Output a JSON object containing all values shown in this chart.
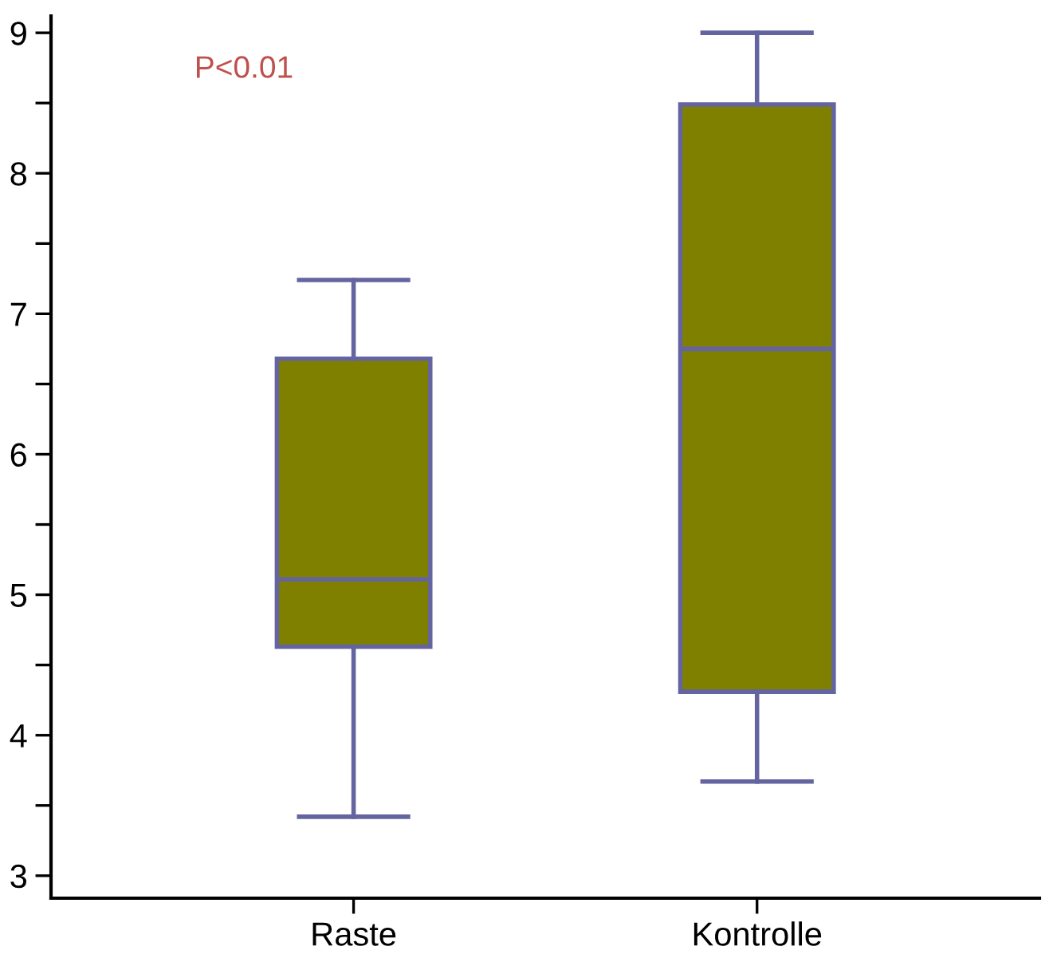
{
  "chart_data": {
    "type": "box",
    "categories": [
      "Raste",
      "Kontrolle"
    ],
    "series": [
      {
        "color": "#808000",
        "boxes": [
          {
            "low": 3.42,
            "q1": 4.63,
            "median": 5.11,
            "q3": 6.68,
            "high": 7.24
          },
          {
            "low": 3.67,
            "q1": 4.31,
            "median": 6.75,
            "q3": 8.49,
            "high": 9.0
          }
        ]
      }
    ],
    "ylim": [
      2.84,
      9.12
    ],
    "yticks": [
      3,
      {
        "value": 3.5,
        "label": null
      },
      4,
      {
        "value": 4.5,
        "label": null
      },
      5,
      {
        "value": 5.5,
        "label": null
      },
      6,
      {
        "value": 6.5,
        "label": null
      },
      7,
      {
        "value": 7.5,
        "label": null
      },
      8,
      {
        "value": 8.5,
        "label": null
      },
      9
    ],
    "annotations": [
      "P<0.01"
    ],
    "grid": false,
    "legend": false
  }
}
